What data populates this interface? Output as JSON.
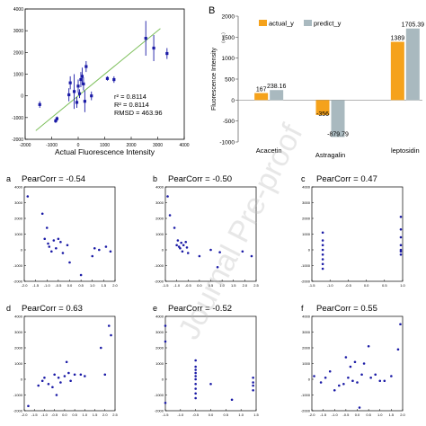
{
  "watermark": "Journal Pre-proof",
  "chart_data": [
    {
      "type": "scatter",
      "panel": "A",
      "xlabel": "Actual Fluorescence Intensity",
      "ylabel": "",
      "xlim": [
        -2000,
        4000
      ],
      "ylim": [
        -2000,
        4000
      ],
      "xticks": [
        "-2000",
        "-1000",
        "0",
        "1000",
        "2000",
        "3000",
        "4000"
      ],
      "yticks": [
        "-2000",
        "-1000",
        "0",
        "1000",
        "2000",
        "3000",
        "4000"
      ],
      "annotations": [
        "r² = 0.8114",
        "R² = 0.8114",
        "RMSD = 463.96"
      ],
      "fit_line": [
        [
          -1600,
          -1600
        ],
        [
          3100,
          3100
        ]
      ],
      "points": [
        {
          "x": -1450,
          "y": -400,
          "err": 150
        },
        {
          "x": -850,
          "y": -1150,
          "err": 100
        },
        {
          "x": -800,
          "y": -1050,
          "err": 100
        },
        {
          "x": -350,
          "y": 50,
          "err": 300
        },
        {
          "x": -300,
          "y": 600,
          "err": 300
        },
        {
          "x": -150,
          "y": 200,
          "err": 800
        },
        {
          "x": -50,
          "y": -300,
          "err": 250
        },
        {
          "x": 0,
          "y": 450,
          "err": 300
        },
        {
          "x": 50,
          "y": 100,
          "err": 200
        },
        {
          "x": 100,
          "y": 750,
          "err": 350
        },
        {
          "x": 150,
          "y": 900,
          "err": 400
        },
        {
          "x": 200,
          "y": 550,
          "err": 300
        },
        {
          "x": 250,
          "y": -250,
          "err": 500
        },
        {
          "x": 300,
          "y": 1350,
          "err": 250
        },
        {
          "x": 500,
          "y": 0,
          "err": 200
        },
        {
          "x": 1100,
          "y": 800,
          "err": 100
        },
        {
          "x": 1350,
          "y": 750,
          "err": 150
        },
        {
          "x": 2550,
          "y": 2650,
          "err": 800
        },
        {
          "x": 2850,
          "y": 2200,
          "err": 600
        },
        {
          "x": 3350,
          "y": 1950,
          "err": 250
        }
      ]
    },
    {
      "type": "bar",
      "panel": "B",
      "ylabel": "Fluorescence Intensity",
      "yunit": "(a.u.)",
      "ylim": [
        -1000,
        2000
      ],
      "yticks": [
        "-1000",
        "-500",
        "0",
        "500",
        "1000",
        "1500",
        "2000"
      ],
      "categories": [
        "Acacetin",
        "Astragalin",
        "leptosidin"
      ],
      "legend_position": "top-left",
      "series": [
        {
          "name": "actual_y",
          "color": "#f5a21b",
          "values": [
            167,
            -356,
            1389
          ],
          "labels": [
            "167",
            "-356",
            "1389"
          ]
        },
        {
          "name": "predict_y",
          "color": "#a9b9bf",
          "values": [
            238.16,
            -879.79,
            1705.39
          ],
          "labels": [
            "238.16",
            "-879.79",
            "1705.39"
          ]
        }
      ]
    },
    {
      "type": "scatter",
      "panel": "a",
      "title": "PearCorr = -0.54",
      "xlim": [
        -2.0,
        2.0
      ],
      "ylim": [
        -2000,
        4000
      ],
      "xticks": [
        "-2.0",
        "-1.5",
        "-1.0",
        "-0.5",
        "0.0",
        "0.5",
        "1.0",
        "1.5",
        "2.0"
      ],
      "yticks": [
        "-2000",
        "-1000",
        "0",
        "1000",
        "2000",
        "3000",
        "4000"
      ],
      "points": [
        [
          -1.85,
          3400
        ],
        [
          -1.2,
          2300
        ],
        [
          -1.1,
          700
        ],
        [
          -1.0,
          1400
        ],
        [
          -0.95,
          400
        ],
        [
          -0.9,
          200
        ],
        [
          -0.8,
          -100
        ],
        [
          -0.7,
          600
        ],
        [
          -0.6,
          100
        ],
        [
          -0.5,
          700
        ],
        [
          -0.4,
          500
        ],
        [
          -0.3,
          -200
        ],
        [
          -0.1,
          300
        ],
        [
          0.0,
          -800
        ],
        [
          0.5,
          -1600
        ],
        [
          1.0,
          -400
        ],
        [
          1.1,
          100
        ],
        [
          1.3,
          0
        ],
        [
          1.6,
          200
        ],
        [
          1.8,
          -100
        ]
      ]
    },
    {
      "type": "scatter",
      "panel": "b",
      "title": "PearCorr = -0.50",
      "xlim": [
        -1.5,
        2.5
      ],
      "ylim": [
        -2000,
        4000
      ],
      "xticks": [
        "-1.5",
        "-1.0",
        "-0.5",
        "0.0",
        "0.5",
        "1.0",
        "1.5",
        "2.0",
        "2.5"
      ],
      "yticks": [
        "-2000",
        "-1000",
        "0",
        "1000",
        "2000",
        "3000",
        "4000"
      ],
      "points": [
        [
          -1.4,
          3400
        ],
        [
          -1.3,
          2200
        ],
        [
          -1.1,
          1400
        ],
        [
          -1.0,
          300
        ],
        [
          -0.95,
          600
        ],
        [
          -0.9,
          200
        ],
        [
          -0.85,
          100
        ],
        [
          -0.8,
          450
        ],
        [
          -0.75,
          -100
        ],
        [
          -0.7,
          300
        ],
        [
          -0.6,
          500
        ],
        [
          -0.55,
          150
        ],
        [
          -0.5,
          -200
        ],
        [
          0.0,
          -400
        ],
        [
          0.5,
          0
        ],
        [
          0.8,
          -1100
        ],
        [
          0.9,
          -150
        ],
        [
          1.9,
          -100
        ],
        [
          2.3,
          -400
        ]
      ]
    },
    {
      "type": "scatter",
      "panel": "c",
      "title": "PearCorr = 0.47",
      "xlim": [
        -1.5,
        1.0
      ],
      "ylim": [
        -2000,
        4000
      ],
      "xticks": [
        "-1.5",
        "-1.0",
        "-0.5",
        "0.0",
        "0.5",
        "1.0"
      ],
      "yticks": [
        "-2000",
        "-1000",
        "0",
        "1000",
        "2000",
        "3000",
        "4000"
      ],
      "points": [
        [
          -1.2,
          1100
        ],
        [
          -1.2,
          600
        ],
        [
          -1.2,
          300
        ],
        [
          -1.2,
          0
        ],
        [
          -1.2,
          -300
        ],
        [
          -1.2,
          -600
        ],
        [
          -1.2,
          -900
        ],
        [
          -1.2,
          -1200
        ],
        [
          0.95,
          2100
        ],
        [
          0.95,
          1300
        ],
        [
          0.95,
          800
        ],
        [
          0.95,
          300
        ],
        [
          0.95,
          0
        ],
        [
          0.95,
          -100
        ],
        [
          0.95,
          -300
        ]
      ]
    },
    {
      "type": "scatter",
      "panel": "d",
      "title": "PearCorr = 0.63",
      "xlim": [
        -2.0,
        2.5
      ],
      "ylim": [
        -2000,
        4000
      ],
      "xticks": [
        "-2.0",
        "-1.5",
        "-1.0",
        "-0.5",
        "0.0",
        "0.5",
        "1.0",
        "1.5",
        "2.0",
        "2.5"
      ],
      "yticks": [
        "-2000",
        "-1000",
        "0",
        "1000",
        "2000",
        "3000",
        "4000"
      ],
      "points": [
        [
          -1.8,
          -1700
        ],
        [
          -1.3,
          -400
        ],
        [
          -1.1,
          -100
        ],
        [
          -1.0,
          100
        ],
        [
          -0.8,
          -300
        ],
        [
          -0.6,
          -500
        ],
        [
          -0.5,
          300
        ],
        [
          -0.4,
          -1000
        ],
        [
          -0.3,
          100
        ],
        [
          -0.2,
          -200
        ],
        [
          0.0,
          200
        ],
        [
          0.1,
          1100
        ],
        [
          0.2,
          400
        ],
        [
          0.3,
          -100
        ],
        [
          0.5,
          300
        ],
        [
          0.8,
          300
        ],
        [
          1.0,
          200
        ],
        [
          1.8,
          2000
        ],
        [
          2.0,
          300
        ],
        [
          2.2,
          3400
        ],
        [
          2.3,
          2800
        ]
      ]
    },
    {
      "type": "scatter",
      "panel": "e",
      "title": "PearCorr = -0.52",
      "xlim": [
        -1.5,
        1.5
      ],
      "ylim": [
        -2000,
        4000
      ],
      "xticks": [
        "-1.5",
        "-1.0",
        "-0.5",
        "0.0",
        "0.5",
        "1.0",
        "1.5"
      ],
      "yticks": [
        "-2000",
        "-1000",
        "0",
        "1000",
        "2000",
        "3000",
        "4000"
      ],
      "points": [
        [
          -1.5,
          3400
        ],
        [
          -1.5,
          2400
        ],
        [
          -1.5,
          -1500
        ],
        [
          -0.5,
          1200
        ],
        [
          -0.5,
          800
        ],
        [
          -0.5,
          600
        ],
        [
          -0.5,
          400
        ],
        [
          -0.5,
          200
        ],
        [
          -0.5,
          0
        ],
        [
          -0.5,
          -300
        ],
        [
          -0.5,
          -600
        ],
        [
          -0.5,
          -900
        ],
        [
          -0.5,
          -1200
        ],
        [
          0.0,
          -300
        ],
        [
          0.7,
          -1300
        ],
        [
          1.4,
          100
        ],
        [
          1.4,
          -200
        ],
        [
          1.4,
          -400
        ],
        [
          1.4,
          -700
        ]
      ]
    },
    {
      "type": "scatter",
      "panel": "f",
      "title": "PearCorr = 0.55",
      "xlim": [
        -2.0,
        2.0
      ],
      "ylim": [
        -2000,
        4000
      ],
      "xticks": [
        "-2.0",
        "-1.5",
        "-1.0",
        "-0.5",
        "0.0",
        "0.5",
        "1.0",
        "1.5",
        "2.0"
      ],
      "yticks": [
        "-2000",
        "-1000",
        "0",
        "1000",
        "2000",
        "3000",
        "4000"
      ],
      "points": [
        [
          -1.9,
          200
        ],
        [
          -1.6,
          -200
        ],
        [
          -1.4,
          100
        ],
        [
          -1.2,
          500
        ],
        [
          -1.0,
          -700
        ],
        [
          -0.8,
          -400
        ],
        [
          -0.6,
          -300
        ],
        [
          -0.5,
          1400
        ],
        [
          -0.4,
          100
        ],
        [
          -0.3,
          800
        ],
        [
          -0.2,
          -100
        ],
        [
          -0.1,
          1100
        ],
        [
          0.0,
          -200
        ],
        [
          0.1,
          -1800
        ],
        [
          0.2,
          300
        ],
        [
          0.3,
          1000
        ],
        [
          0.5,
          2100
        ],
        [
          0.6,
          100
        ],
        [
          0.8,
          300
        ],
        [
          1.0,
          -100
        ],
        [
          1.2,
          -100
        ],
        [
          1.5,
          200
        ],
        [
          1.8,
          1900
        ],
        [
          1.9,
          3500
        ]
      ]
    }
  ]
}
